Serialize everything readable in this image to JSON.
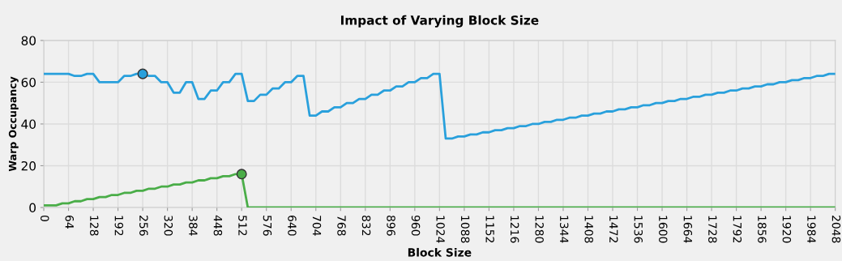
{
  "chart_data": {
    "type": "line",
    "title": "Impact of Varying Block Size",
    "xlabel": "Block Size",
    "ylabel": "Warp Occupancy",
    "x": [
      0,
      16,
      32,
      48,
      64,
      80,
      96,
      112,
      128,
      144,
      160,
      176,
      192,
      208,
      224,
      240,
      256,
      272,
      288,
      304,
      320,
      336,
      352,
      368,
      384,
      400,
      416,
      432,
      448,
      464,
      480,
      496,
      512,
      528,
      544,
      560,
      576,
      592,
      608,
      624,
      640,
      656,
      672,
      688,
      704,
      720,
      736,
      752,
      768,
      784,
      800,
      816,
      832,
      848,
      864,
      880,
      896,
      912,
      928,
      944,
      960,
      976,
      992,
      1008,
      1024,
      1040,
      1056,
      1072,
      1088,
      1104,
      1120,
      1136,
      1152,
      1168,
      1184,
      1200,
      1216,
      1232,
      1248,
      1264,
      1280,
      1296,
      1312,
      1328,
      1344,
      1360,
      1376,
      1392,
      1408,
      1424,
      1440,
      1456,
      1472,
      1488,
      1504,
      1520,
      1536,
      1552,
      1568,
      1584,
      1600,
      1616,
      1632,
      1648,
      1664,
      1680,
      1696,
      1712,
      1728,
      1744,
      1760,
      1776,
      1792,
      1808,
      1824,
      1840,
      1856,
      1872,
      1888,
      1904,
      1920,
      1936,
      1952,
      1968,
      1984,
      2000,
      2016,
      2032,
      2048
    ],
    "series": [
      {
        "color": "#29a0dc",
        "values": [
          64,
          64,
          64,
          64,
          64,
          63,
          63,
          64,
          64,
          60,
          60,
          60,
          60,
          63,
          63,
          64,
          64,
          63,
          63,
          60,
          60,
          55,
          55,
          60,
          60,
          52,
          52,
          56,
          56,
          60,
          60,
          64,
          64,
          51,
          51,
          54,
          54,
          57,
          57,
          60,
          60,
          63,
          63,
          44,
          44,
          46,
          46,
          48,
          48,
          50,
          50,
          52,
          52,
          54,
          54,
          56,
          56,
          58,
          58,
          60,
          60,
          62,
          62,
          64,
          64,
          33,
          33,
          34,
          34,
          35,
          35,
          36,
          36,
          37,
          37,
          38,
          38,
          39,
          39,
          40,
          40,
          41,
          41,
          42,
          42,
          43,
          43,
          44,
          44,
          45,
          45,
          46,
          46,
          47,
          47,
          48,
          48,
          49,
          49,
          50,
          50,
          51,
          51,
          52,
          52,
          53,
          53,
          54,
          54,
          55,
          55,
          56,
          56,
          57,
          57,
          58,
          58,
          59,
          59,
          60,
          60,
          61,
          61,
          62,
          62,
          63,
          63,
          64,
          64
        ]
      },
      {
        "color": "#4aad48",
        "values": [
          1,
          1,
          1,
          2,
          2,
          3,
          3,
          4,
          4,
          5,
          5,
          6,
          6,
          7,
          7,
          8,
          8,
          9,
          9,
          10,
          10,
          11,
          11,
          12,
          12,
          13,
          13,
          14,
          14,
          15,
          15,
          16,
          16,
          0,
          0,
          0,
          0,
          0,
          0,
          0,
          0,
          0,
          0,
          0,
          0,
          0,
          0,
          0,
          0,
          0,
          0,
          0,
          0,
          0,
          0,
          0,
          0,
          0,
          0,
          0,
          0,
          0,
          0,
          0,
          0,
          0,
          0,
          0,
          0,
          0,
          0,
          0,
          0,
          0,
          0,
          0,
          0,
          0,
          0,
          0,
          0,
          0,
          0,
          0,
          0,
          0,
          0,
          0,
          0,
          0,
          0,
          0,
          0,
          0,
          0,
          0,
          0,
          0,
          0,
          0,
          0,
          0,
          0,
          0,
          0,
          0,
          0,
          0,
          0,
          0,
          0,
          0,
          0,
          0,
          0,
          0,
          0,
          0,
          0,
          0,
          0,
          0,
          0,
          0,
          0,
          0,
          0,
          0,
          0
        ]
      },
      {
        "type": "scatter",
        "marker": "circle",
        "color": "#29a0dc",
        "x": [
          256
        ],
        "values": [
          64
        ]
      },
      {
        "type": "scatter",
        "marker": "circle",
        "color": "#4aad48",
        "x": [
          512
        ],
        "values": [
          16
        ]
      }
    ],
    "xlim": [
      0,
      2048
    ],
    "xticks": [
      0,
      64,
      128,
      192,
      256,
      320,
      384,
      448,
      512,
      576,
      640,
      704,
      768,
      832,
      896,
      960,
      1024,
      1088,
      1152,
      1216,
      1280,
      1344,
      1408,
      1472,
      1536,
      1600,
      1664,
      1728,
      1792,
      1856,
      1920,
      1984,
      2048
    ],
    "ylim": [
      0,
      80
    ],
    "yticks": [
      0,
      20,
      40,
      60,
      80
    ],
    "grid": true
  }
}
